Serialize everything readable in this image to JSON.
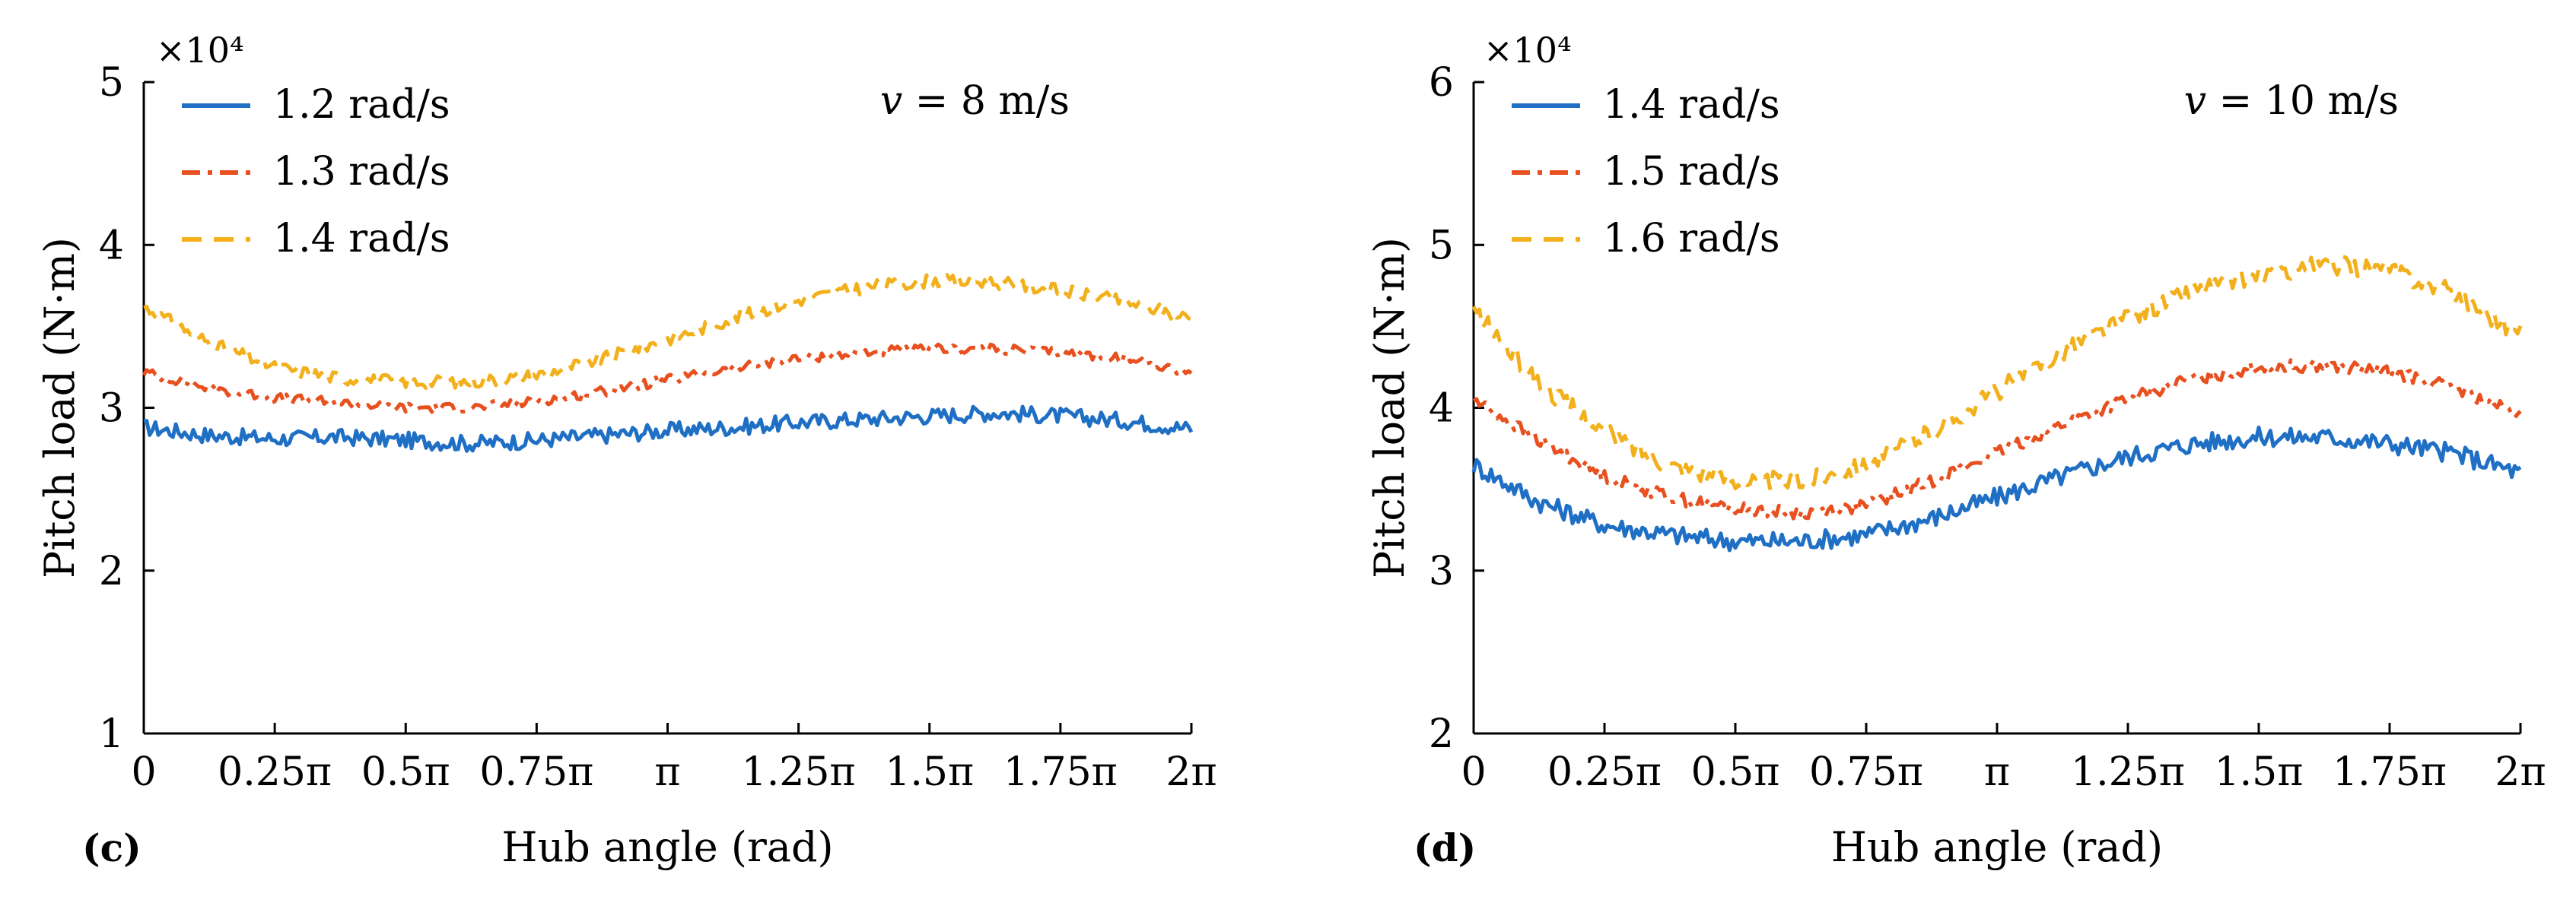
{
  "chart_data": [
    {
      "type": "line",
      "panel_label": "(c)",
      "multiplier": "×10⁴",
      "annotation": "v = 8 m/s",
      "annotation_var": "v",
      "annotation_rest": " = 8 m/s",
      "xlabel": "Hub angle (rad)",
      "ylabel": "Pitch load (N·m)",
      "xlim": [
        0,
        2
      ],
      "ylim": [
        1,
        5
      ],
      "x_ticks": [
        0,
        0.25,
        0.5,
        0.75,
        1,
        1.25,
        1.5,
        1.75,
        2
      ],
      "x_tick_labels": [
        "0",
        "0.25π",
        "0.5π",
        "0.75π",
        "π",
        "1.25π",
        "1.5π",
        "1.75π",
        "2π"
      ],
      "y_ticks": [
        1,
        2,
        3,
        4,
        5
      ],
      "y_tick_labels": [
        "1",
        "2",
        "3",
        "4",
        "5"
      ],
      "x": [
        0,
        0.125,
        0.25,
        0.375,
        0.5,
        0.625,
        0.75,
        0.875,
        1,
        1.125,
        1.25,
        1.375,
        1.5,
        1.625,
        1.75,
        1.875,
        2
      ],
      "series": [
        {
          "name": "1.2 rad/s",
          "color": "#1f6fc5",
          "dash": "solid",
          "noise": 0.05,
          "values": [
            2.88,
            2.83,
            2.81,
            2.82,
            2.8,
            2.78,
            2.8,
            2.83,
            2.86,
            2.88,
            2.91,
            2.93,
            2.95,
            2.97,
            2.95,
            2.92,
            2.87
          ]
        },
        {
          "name": "1.3 rad/s",
          "color": "#e8501f",
          "dash": "dashdot",
          "noise": 0.03,
          "values": [
            3.22,
            3.12,
            3.06,
            3.03,
            3.0,
            3.0,
            3.04,
            3.1,
            3.17,
            3.24,
            3.3,
            3.34,
            3.36,
            3.36,
            3.34,
            3.3,
            3.22
          ]
        },
        {
          "name": "1.4 rad/s",
          "color": "#f2b01c",
          "dash": "dashed",
          "noise": 0.04,
          "values": [
            3.62,
            3.4,
            3.25,
            3.18,
            3.16,
            3.16,
            3.2,
            3.3,
            3.42,
            3.55,
            3.66,
            3.74,
            3.78,
            3.77,
            3.72,
            3.65,
            3.55
          ]
        }
      ]
    },
    {
      "type": "line",
      "panel_label": "(d)",
      "multiplier": "×10⁴",
      "annotation": "v = 10 m/s",
      "annotation_var": "v",
      "annotation_rest": " = 10 m/s",
      "xlabel": "Hub angle (rad)",
      "ylabel": "Pitch load (N·m)",
      "xlim": [
        0,
        2
      ],
      "ylim": [
        2,
        6
      ],
      "x_ticks": [
        0,
        0.25,
        0.5,
        0.75,
        1,
        1.25,
        1.5,
        1.75,
        2
      ],
      "x_tick_labels": [
        "0",
        "0.25π",
        "0.5π",
        "0.75π",
        "π",
        "1.25π",
        "1.5π",
        "1.75π",
        "2π"
      ],
      "y_ticks": [
        2,
        3,
        4,
        5,
        6
      ],
      "y_tick_labels": [
        "2",
        "3",
        "4",
        "5",
        "6"
      ],
      "x": [
        0,
        0.125,
        0.25,
        0.375,
        0.5,
        0.625,
        0.75,
        0.875,
        1,
        1.125,
        1.25,
        1.375,
        1.5,
        1.625,
        1.75,
        1.875,
        2
      ],
      "series": [
        {
          "name": "1.4 rad/s",
          "color": "#1f6fc5",
          "dash": "solid",
          "noise": 0.06,
          "values": [
            3.65,
            3.42,
            3.28,
            3.22,
            3.18,
            3.18,
            3.22,
            3.32,
            3.45,
            3.58,
            3.7,
            3.78,
            3.82,
            3.82,
            3.78,
            3.72,
            3.6
          ]
        },
        {
          "name": "1.5 rad/s",
          "color": "#e8501f",
          "dash": "dashdot",
          "noise": 0.04,
          "values": [
            4.05,
            3.8,
            3.58,
            3.45,
            3.38,
            3.35,
            3.4,
            3.55,
            3.72,
            3.9,
            4.05,
            4.18,
            4.25,
            4.26,
            4.22,
            4.12,
            3.95
          ]
        },
        {
          "name": "1.6 rad/s",
          "color": "#f2b01c",
          "dash": "dashed",
          "noise": 0.06,
          "values": [
            4.6,
            4.15,
            3.85,
            3.65,
            3.55,
            3.55,
            3.65,
            3.85,
            4.1,
            4.35,
            4.55,
            4.72,
            4.82,
            4.88,
            4.85,
            4.7,
            4.45
          ]
        }
      ]
    }
  ]
}
